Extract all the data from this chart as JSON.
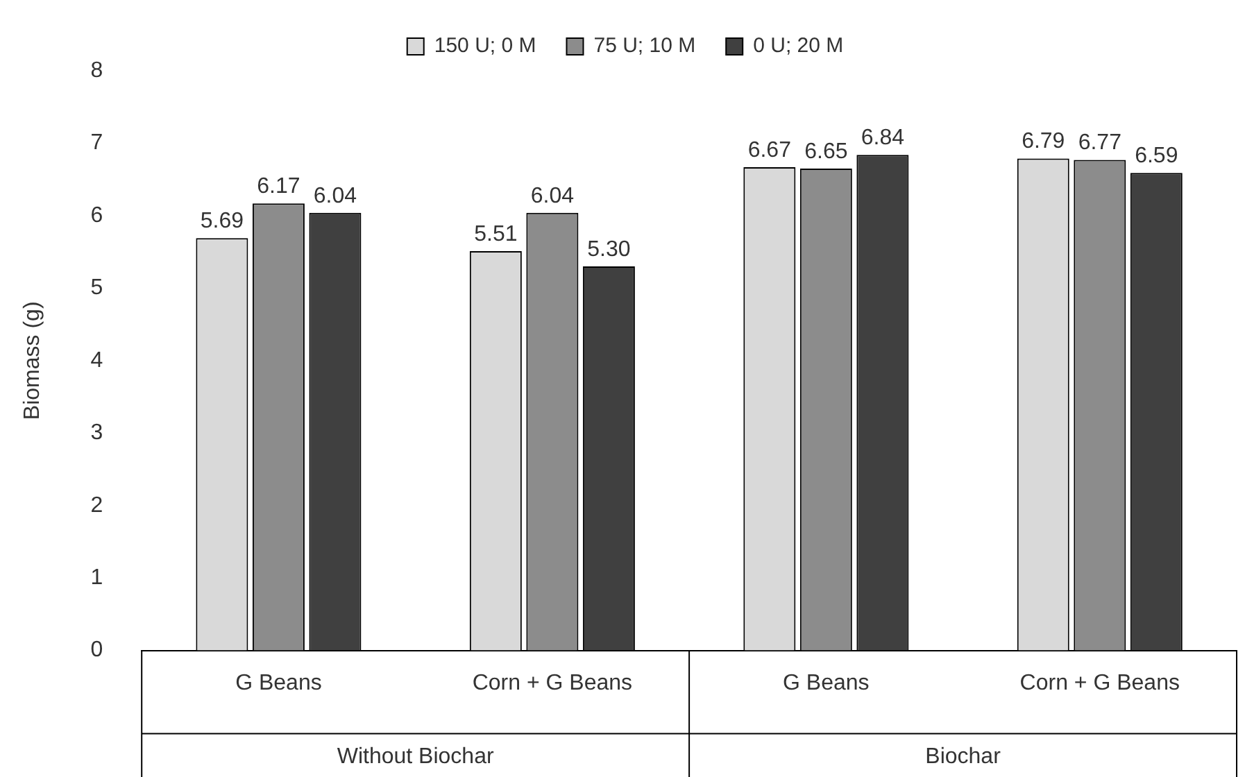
{
  "chart_data": {
    "type": "bar",
    "ylabel": "Biomass (g)",
    "categories": [
      "G Beans",
      "Corn + G Beans",
      "G Beans",
      "Corn + G Beans"
    ],
    "series": [
      {
        "name": "150 U; 0 M",
        "color": "#d9d9d9",
        "values": [
          5.69,
          5.51,
          6.67,
          6.79
        ],
        "value_labels": [
          "5.69",
          "5.51",
          "6.67",
          "6.79"
        ]
      },
      {
        "name": "75 U; 10 M",
        "color": "#8c8c8c",
        "values": [
          6.17,
          6.04,
          6.65,
          6.77
        ],
        "value_labels": [
          "6.17",
          "6.04",
          "6.65",
          "6.77"
        ]
      },
      {
        "name": "0 U; 20 M",
        "color": "#404040",
        "values": [
          6.04,
          5.3,
          6.84,
          6.59
        ],
        "value_labels": [
          "6.04",
          "5.30",
          "6.84",
          "6.59"
        ]
      }
    ],
    "ylim": [
      0,
      8
    ],
    "yticks": [
      0,
      1,
      2,
      3,
      4,
      5,
      6,
      7,
      8
    ],
    "grid": false,
    "legend": "top",
    "annotations": [
      "Without Biochar",
      "Biochar"
    ]
  }
}
